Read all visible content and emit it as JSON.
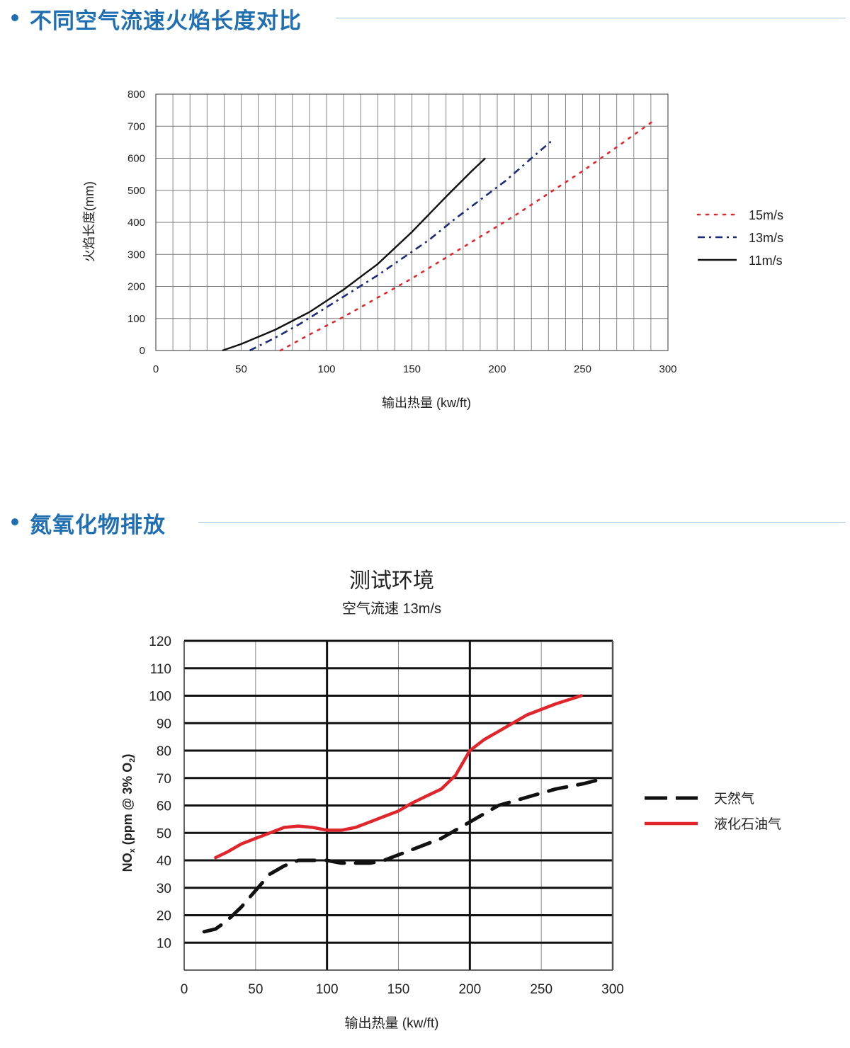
{
  "sections": [
    {
      "title": "不同空气流速火焰长度对比"
    },
    {
      "title": "氮氧化物排放"
    }
  ],
  "chart_data": [
    {
      "type": "line",
      "title": "",
      "xlabel": "输出热量 (kw/ft)",
      "ylabel": "火焰长度(mm)",
      "xlim": [
        0,
        300
      ],
      "ylim": [
        0,
        800
      ],
      "xticks": [
        0,
        50,
        100,
        150,
        200,
        250,
        300
      ],
      "yticks": [
        0,
        100,
        200,
        300,
        400,
        500,
        600,
        700,
        800
      ],
      "grid": true,
      "legend_position": "right",
      "series": [
        {
          "name": "15m/s",
          "color": "#e0262c",
          "style": "dotted",
          "x": [
            73,
            90,
            110,
            130,
            150,
            170,
            190,
            210,
            230,
            250,
            270,
            291
          ],
          "y": [
            0,
            50,
            105,
            165,
            225,
            290,
            355,
            420,
            490,
            560,
            635,
            715
          ]
        },
        {
          "name": "13m/s",
          "color": "#1e2a78",
          "style": "dashdot",
          "x": [
            55,
            70,
            85,
            100,
            115,
            130,
            145,
            160,
            175,
            190,
            205,
            220,
            232
          ],
          "y": [
            0,
            40,
            85,
            135,
            185,
            235,
            290,
            345,
            410,
            470,
            530,
            600,
            655
          ]
        },
        {
          "name": "11m/s",
          "color": "#111111",
          "style": "solid",
          "x": [
            39,
            50,
            70,
            90,
            110,
            130,
            150,
            170,
            185,
            193
          ],
          "y": [
            0,
            20,
            65,
            120,
            190,
            270,
            370,
            480,
            560,
            600
          ]
        }
      ]
    },
    {
      "type": "line",
      "title": "测试环境",
      "subtitle": "空气流速 13m/s",
      "xlabel": "输出热量 (kw/ft)",
      "ylabel": "NOx (ppm @ 3% O2)",
      "ylabel_parts": {
        "no": "NO",
        "x": "x",
        "mid": " (ppm @ 3% O",
        "two": "2",
        "end": ")"
      },
      "xlim": [
        0,
        300
      ],
      "ylim": [
        0,
        120
      ],
      "xticks": [
        0,
        50,
        100,
        150,
        200,
        250,
        300
      ],
      "yticks": [
        10,
        20,
        30,
        40,
        50,
        60,
        70,
        80,
        90,
        100,
        110,
        120
      ],
      "grid": true,
      "legend_position": "right",
      "series": [
        {
          "name": "天然气",
          "color": "#111111",
          "style": "dashed",
          "x": [
            14,
            22,
            30,
            40,
            50,
            60,
            70,
            80,
            90,
            100,
            110,
            120,
            130,
            140,
            160,
            180,
            200,
            220,
            240,
            260,
            280,
            295
          ],
          "y": [
            14,
            15,
            18,
            23,
            29,
            35,
            38,
            40,
            40,
            40,
            39,
            39,
            39,
            40,
            44,
            48,
            54,
            60,
            63,
            66,
            68,
            70
          ]
        },
        {
          "name": "液化石油气",
          "color": "#e0262c",
          "style": "solid",
          "x": [
            22,
            30,
            40,
            50,
            60,
            70,
            80,
            90,
            100,
            110,
            120,
            130,
            140,
            150,
            160,
            170,
            180,
            190,
            200,
            210,
            220,
            240,
            260,
            278
          ],
          "y": [
            41,
            43,
            46,
            48,
            50,
            52,
            52.5,
            52,
            51,
            51,
            52,
            54,
            56,
            58,
            61,
            63.5,
            66,
            71,
            80,
            84,
            87,
            93,
            97,
            100
          ]
        }
      ]
    }
  ]
}
